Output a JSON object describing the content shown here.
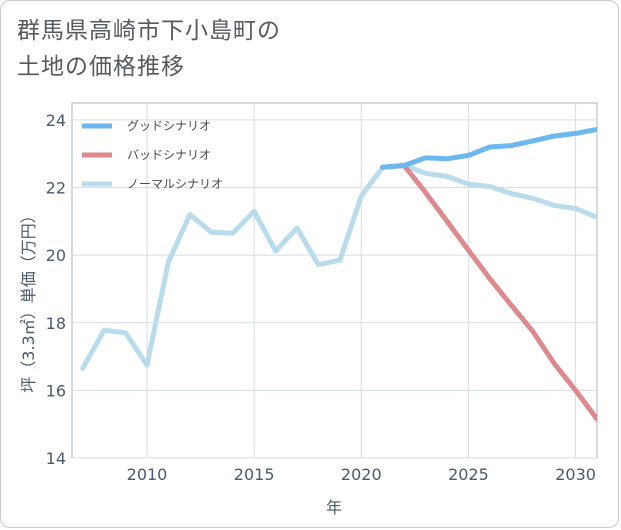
{
  "title_lines": [
    "群馬県高崎市下小島町の",
    "土地の価格推移"
  ],
  "chart_data": {
    "type": "line",
    "xlabel": "年",
    "ylabel": "坪（3.3㎡）単価（万円）",
    "xlim": [
      2006.5,
      2031
    ],
    "ylim": [
      14,
      24.5
    ],
    "xticks": [
      2010,
      2015,
      2020,
      2025,
      2030
    ],
    "yticks": [
      14,
      16,
      18,
      20,
      22,
      24
    ],
    "grid": true,
    "legend_position": "top-left",
    "series": [
      {
        "name": "グッドシナリオ",
        "color": "#6cb8ee",
        "x": [
          2021,
          2022,
          2023,
          2024,
          2025,
          2026,
          2027,
          2028,
          2029,
          2030,
          2031
        ],
        "values": [
          22.6,
          22.65,
          22.88,
          22.85,
          22.95,
          23.2,
          23.24,
          23.38,
          23.52,
          23.6,
          23.72
        ]
      },
      {
        "name": "バッドシナリオ",
        "color": "#dc8a8e",
        "x": [
          2021,
          2022,
          2023,
          2024,
          2025,
          2026,
          2027,
          2028,
          2029,
          2030,
          2031
        ],
        "values": [
          22.6,
          22.65,
          21.85,
          21.0,
          20.15,
          19.3,
          18.52,
          17.75,
          16.8,
          16.0,
          15.15
        ]
      },
      {
        "name": "ノーマルシナリオ",
        "color": "#b8dcec",
        "x": [
          2007,
          2008,
          2009,
          2010,
          2011,
          2012,
          2013,
          2014,
          2015,
          2016,
          2017,
          2018,
          2019,
          2020,
          2021,
          2022,
          2023,
          2024,
          2025,
          2026,
          2027,
          2028,
          2029,
          2030,
          2031
        ],
        "values": [
          16.65,
          17.78,
          17.7,
          16.75,
          19.8,
          21.2,
          20.68,
          20.65,
          21.3,
          20.12,
          20.8,
          19.72,
          19.85,
          21.75,
          22.6,
          22.65,
          22.42,
          22.33,
          22.1,
          22.03,
          21.82,
          21.68,
          21.47,
          21.38,
          21.12
        ]
      }
    ]
  }
}
